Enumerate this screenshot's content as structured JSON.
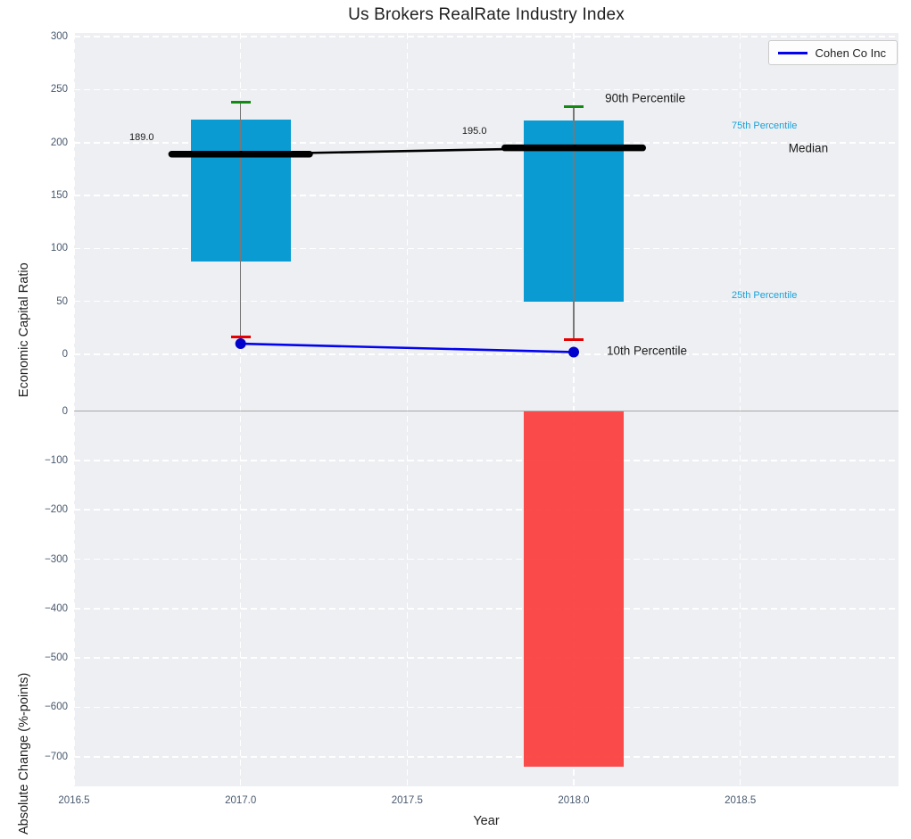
{
  "chart_data": {
    "type": "box",
    "title": "Us Brokers RealRate Industry Index",
    "xlabel": "Year",
    "xlim": [
      2016.5,
      2018.975
    ],
    "x_tick_values": [
      2016.5,
      2017.0,
      2017.5,
      2018.0,
      2018.5
    ],
    "x_tick_labels": [
      "2016.5",
      "2017.0",
      "2017.5",
      "2018.0",
      "2018.5"
    ],
    "colors": {
      "box_fill": "#0A9BD2",
      "percentile_text": "#18A2D9",
      "bar_red": "#FB3D3D",
      "cap_red": "#E60000",
      "cap_green": "#128A12",
      "line_blue": "#0202EF",
      "dot_blue": "#0202CD",
      "whisker_gray": "#787878",
      "median_black": "#000000",
      "grid_white": "#FFFFFF",
      "panel_bg": "#EDEFF2",
      "zero_line": "#A8A8A8",
      "tick_text": "#47586D",
      "label_text": "#1F1F1F"
    },
    "top_panel": {
      "ylabel": "Economic Capital Ratio",
      "ylim": [
        -49,
        303.5
      ],
      "yticks": [
        300,
        250,
        200,
        150,
        100,
        50,
        0
      ],
      "ytick_labels": [
        "300",
        "250",
        "200",
        "150",
        "100",
        "50",
        "0"
      ],
      "years": [
        2017,
        2018
      ],
      "box_half_width_years": 0.15,
      "series": {
        "p90": [
          238,
          234
        ],
        "p75": [
          222,
          221
        ],
        "median": [
          189,
          195
        ],
        "p25": [
          88,
          50
        ],
        "p10": [
          16,
          14
        ],
        "cohen_co_inc": [
          10,
          2
        ]
      },
      "legend_label": "Cohen Co Inc",
      "median_value_labels": [
        {
          "text": "189.0",
          "x": 2016.666,
          "y": 204.8
        },
        {
          "text": "195.0",
          "x": 2017.665,
          "y": 210.7
        }
      ],
      "annotations": [
        {
          "text": "90th Percentile",
          "x": 2018.094,
          "y": 242.0,
          "color": "#1a1a1a",
          "size": 13.5
        },
        {
          "text": "75th Percentile",
          "x": 2018.474,
          "y": 215.8,
          "color": "#18A2D9",
          "size": 11
        },
        {
          "text": "Median",
          "x": 2018.645,
          "y": 194.7,
          "color": "#1a1a1a",
          "size": 13.5
        },
        {
          "text": "25th Percentile",
          "x": 2018.474,
          "y": 55.6,
          "color": "#18A2D9",
          "size": 11
        },
        {
          "text": "10th Percentile",
          "x": 2018.099,
          "y": 3.3,
          "color": "#1a1a1a",
          "size": 13.5
        }
      ]
    },
    "bottom_panel": {
      "ylabel": "Absolute Change (%-points)",
      "ylim": [
        -760,
        10
      ],
      "yticks": [
        0,
        -100,
        -200,
        -300,
        -400,
        -500,
        -600,
        -700
      ],
      "ytick_labels": [
        "0",
        "−100",
        "−200",
        "−300",
        "−400",
        "−500",
        "−600",
        "−700"
      ],
      "bars": [
        {
          "year": 2018,
          "value": -720
        }
      ]
    }
  }
}
